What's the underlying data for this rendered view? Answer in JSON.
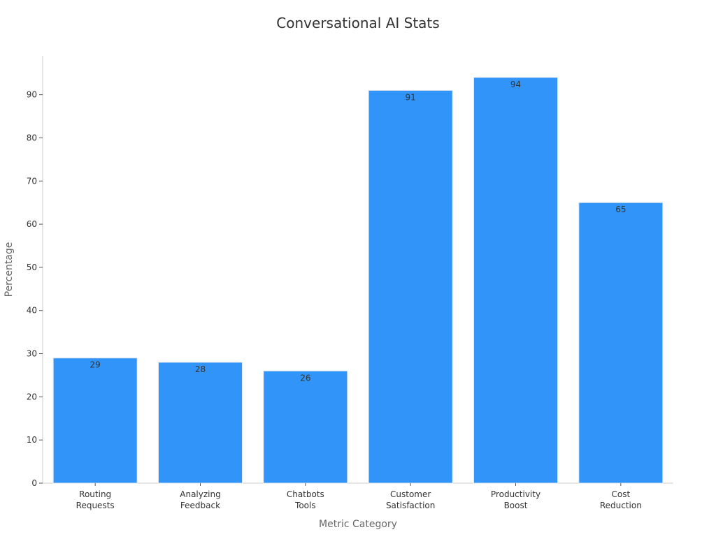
{
  "chart_data": {
    "type": "bar",
    "title": "Conversational AI Stats",
    "xlabel": "Metric Category",
    "ylabel": "Percentage",
    "categories": [
      [
        "Routing",
        "Requests"
      ],
      [
        "Analyzing",
        "Feedback"
      ],
      [
        "Chatbots",
        "Tools"
      ],
      [
        "Customer",
        "Satisfaction"
      ],
      [
        "Productivity",
        "Boost"
      ],
      [
        "Cost",
        "Reduction"
      ]
    ],
    "values": [
      29,
      28,
      26,
      91,
      94,
      65
    ],
    "ylim": [
      0,
      99
    ],
    "yticks": [
      0,
      10,
      20,
      30,
      40,
      50,
      60,
      70,
      80,
      90
    ],
    "grid": false,
    "legend": "none",
    "bar_color": "#3194f8",
    "bar_edge_color": "#e0e6ee"
  }
}
